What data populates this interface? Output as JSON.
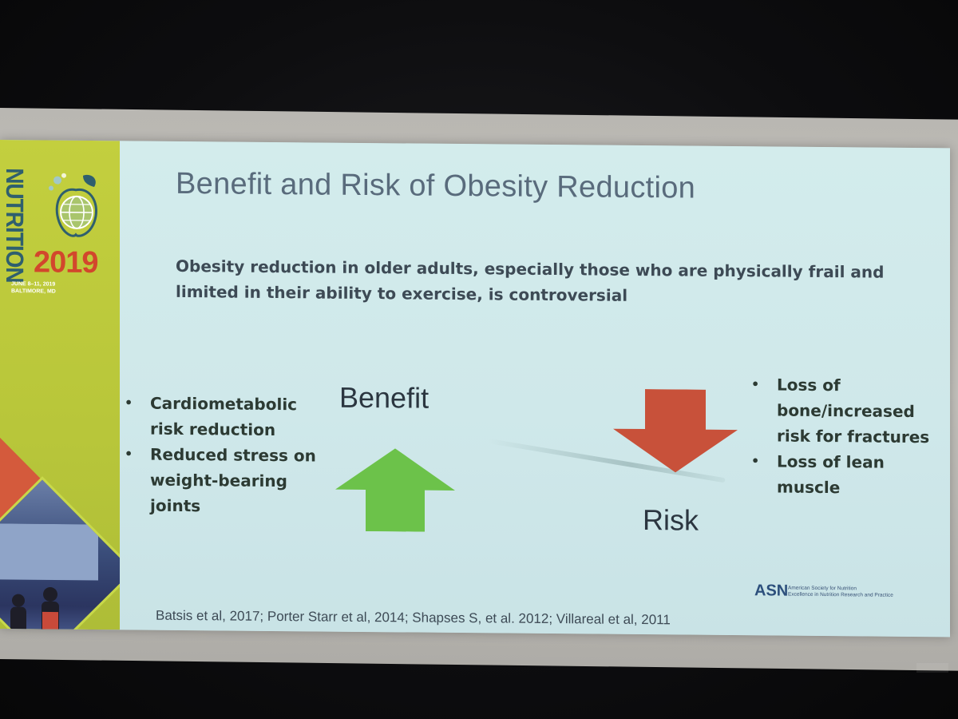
{
  "branding": {
    "event_word": "NUTRITION",
    "event_year": "2019",
    "event_dates": "JUNE 8–11, 2019",
    "event_place": "BALTIMORE, MD"
  },
  "slide": {
    "title": "Benefit and Risk of Obesity Reduction",
    "subtitle": "Obesity reduction in older adults, especially those who are physically frail and limited in their ability to exercise, is controversial",
    "benefit_label": "Benefit",
    "risk_label": "Risk",
    "benefit_bullets": [
      "Cardiometabolic risk reduction",
      "Reduced stress on weight-bearing joints"
    ],
    "risk_bullets": [
      "Loss of bone/increased risk for fractures",
      "Loss of  lean muscle"
    ],
    "citation": "Batsis et al, 2017; Porter Starr et al, 2014; Shapses S, et al. 2012; Villareal et al, 2011",
    "logo_mark": "ASN",
    "logo_line1": "American Society for Nutrition",
    "logo_line2": "Excellence in Nutrition Research and Practice"
  },
  "colors": {
    "up_arrow": "#6cc24a",
    "down_arrow": "#c8513a",
    "brand_green": "#b8c63a",
    "brand_red": "#d2472c",
    "slide_bg": "#cfe8ea"
  },
  "icons": {
    "up_arrow": "arrow-up-icon",
    "down_arrow": "arrow-down-icon",
    "globe": "globe-icon",
    "bullet": "bullet-dot-icon"
  }
}
